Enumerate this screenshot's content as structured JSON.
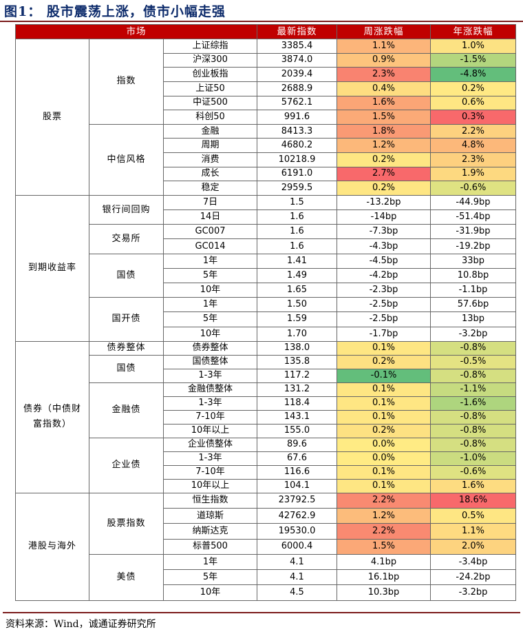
{
  "title": "图1：  股市震荡上涨，债市小幅走强",
  "header": {
    "market": "市场",
    "latest": "最新指数",
    "week": "周涨跌幅",
    "year": "年涨跌幅"
  },
  "groups": [
    {
      "label": "股票",
      "rows": 11,
      "sub": [
        {
          "label": "指数",
          "items": [
            {
              "name": "上证综指",
              "latest": "3385.4",
              "week": "1.1%",
              "year": "1.0%",
              "wc": "#fcb57a",
              "yc": "#fce283"
            },
            {
              "name": "沪深300",
              "latest": "3874.0",
              "week": "0.9%",
              "year": "-1.5%",
              "wc": "#fdc47d",
              "yc": "#b3d67e"
            },
            {
              "name": "创业板指",
              "latest": "2039.4",
              "week": "2.3%",
              "year": "-4.8%",
              "wc": "#f98370",
              "yc": "#63be7b"
            },
            {
              "name": "上证50",
              "latest": "2688.9",
              "week": "0.4%",
              "year": "0.2%",
              "wc": "#fedd81",
              "yc": "#ffe984"
            },
            {
              "name": "中证500",
              "latest": "5762.1",
              "week": "1.6%",
              "year": "0.6%",
              "wc": "#fba576",
              "yc": "#fee683"
            },
            {
              "name": "科创50",
              "latest": "991.6",
              "week": "1.5%",
              "year": "0.3%",
              "wc": "#fbaa77",
              "yc": "#f8696b"
            }
          ]
        },
        {
          "label": "中信风格",
          "items": [
            {
              "name": "金融",
              "latest": "8413.3",
              "week": "1.8%",
              "year": "2.2%",
              "wc": "#fa9a74",
              "yc": "#fdd17f"
            },
            {
              "name": "周期",
              "latest": "4680.2",
              "week": "1.2%",
              "year": "4.8%",
              "wc": "#fcb87a",
              "yc": "#fcb87a"
            },
            {
              "name": "消费",
              "latest": "10218.9",
              "week": "0.2%",
              "year": "2.3%",
              "wc": "#fee683",
              "yc": "#fdd07f"
            },
            {
              "name": "成长",
              "latest": "6191.0",
              "week": "2.7%",
              "year": "1.9%",
              "wc": "#f8696b",
              "yc": "#fdd980"
            },
            {
              "name": "稳定",
              "latest": "2959.5",
              "week": "0.2%",
              "year": "-0.6%",
              "wc": "#fee683",
              "yc": "#dfe282"
            }
          ]
        }
      ]
    },
    {
      "label": "到期收益率",
      "rows": 10,
      "sub": [
        {
          "label": "银行间回购",
          "items": [
            {
              "name": "7日",
              "latest": "1.5",
              "week": "-13.2bp",
              "year": "-44.9bp",
              "wc": "",
              "yc": ""
            },
            {
              "name": "14日",
              "latest": "1.6",
              "week": "-14bp",
              "year": "-51.4bp",
              "wc": "",
              "yc": ""
            }
          ]
        },
        {
          "label": "交易所",
          "items": [
            {
              "name": "GC007",
              "latest": "1.6",
              "week": "-7.3bp",
              "year": "-31.9bp",
              "wc": "",
              "yc": ""
            },
            {
              "name": "GC014",
              "latest": "1.6",
              "week": "-4.3bp",
              "year": "-19.2bp",
              "wc": "",
              "yc": ""
            }
          ]
        },
        {
          "label": "国债",
          "items": [
            {
              "name": "1年",
              "latest": "1.41",
              "week": "-4.5bp",
              "year": "33bp",
              "wc": "",
              "yc": ""
            },
            {
              "name": "5年",
              "latest": "1.49",
              "week": "-4.2bp",
              "year": "10.8bp",
              "wc": "",
              "yc": ""
            },
            {
              "name": "10年",
              "latest": "1.65",
              "week": "-2.3bp",
              "year": "-1.1bp",
              "wc": "",
              "yc": ""
            }
          ]
        },
        {
          "label": "国开债",
          "items": [
            {
              "name": "1年",
              "latest": "1.50",
              "week": "-2.5bp",
              "year": "57.6bp",
              "wc": "",
              "yc": ""
            },
            {
              "name": "5年",
              "latest": "1.59",
              "week": "-2.5bp",
              "year": "13bp",
              "wc": "",
              "yc": ""
            },
            {
              "name": "10年",
              "latest": "1.70",
              "week": "-1.7bp",
              "year": "-3.2bp",
              "wc": "",
              "yc": ""
            }
          ]
        }
      ]
    },
    {
      "label": "债券（中债财富指数）",
      "rows": 11,
      "sub": [
        {
          "label": "债券整体",
          "items": [
            {
              "name": "债券整体",
              "latest": "138.0",
              "week": "0.1%",
              "year": "-0.8%",
              "wc": "#fee683",
              "yc": "#d5df81"
            }
          ]
        },
        {
          "label": "国债",
          "items": [
            {
              "name": "国债整体",
              "latest": "135.8",
              "week": "0.2%",
              "year": "-0.5%",
              "wc": "#fde182",
              "yc": "#e4e383"
            },
            {
              "name": "1-3年",
              "latest": "117.2",
              "week": "-0.1%",
              "year": "-0.8%",
              "wc": "#63be7b",
              "yc": "#d5df81"
            }
          ]
        },
        {
          "label": "金融债",
          "items": [
            {
              "name": "金融债整体",
              "latest": "131.2",
              "week": "0.1%",
              "year": "-1.1%",
              "wc": "#fee683",
              "yc": "#c6db80"
            },
            {
              "name": "1-3年",
              "latest": "118.4",
              "week": "0.1%",
              "year": "-1.6%",
              "wc": "#fee683",
              "yc": "#aed57e"
            },
            {
              "name": "7-10年",
              "latest": "143.1",
              "week": "0.1%",
              "year": "-0.8%",
              "wc": "#fee683",
              "yc": "#d5df81"
            },
            {
              "name": "10年以上",
              "latest": "155.0",
              "week": "0.2%",
              "year": "-0.8%",
              "wc": "#fde182",
              "yc": "#d5df81"
            }
          ]
        },
        {
          "label": "企业债",
          "items": [
            {
              "name": "企业债整体",
              "latest": "89.6",
              "week": "0.0%",
              "year": "-0.8%",
              "wc": "#ffeb84",
              "yc": "#d5df81"
            },
            {
              "name": "1-3年",
              "latest": "67.6",
              "week": "0.0%",
              "year": "-1.0%",
              "wc": "#ffeb84",
              "yc": "#cbdc80"
            },
            {
              "name": "7-10年",
              "latest": "116.6",
              "week": "0.1%",
              "year": "-0.6%",
              "wc": "#fee683",
              "yc": "#dfe282"
            },
            {
              "name": "10年以上",
              "latest": "104.1",
              "week": "0.1%",
              "year": "1.6%",
              "wc": "#fee683",
              "yc": "#fddc81"
            }
          ]
        }
      ]
    },
    {
      "label": "港股与海外",
      "rows": 7,
      "sub": [
        {
          "label": "股票指数",
          "items": [
            {
              "name": "恒生指数",
              "latest": "23792.5",
              "week": "2.2%",
              "year": "18.6%",
              "wc": "#f98a71",
              "yc": "#f8696b"
            },
            {
              "name": "道琼斯",
              "latest": "42762.9",
              "week": "1.2%",
              "year": "0.5%",
              "wc": "#fcbc7b",
              "yc": "#fee683"
            },
            {
              "name": "纳斯达克",
              "latest": "19530.0",
              "week": "2.2%",
              "year": "1.1%",
              "wc": "#f98a71",
              "yc": "#fedb81"
            },
            {
              "name": "标普500",
              "latest": "6000.4",
              "week": "1.5%",
              "year": "2.0%",
              "wc": "#fba877",
              "yc": "#fdd37f"
            }
          ]
        },
        {
          "label": "美债",
          "items": [
            {
              "name": "1年",
              "latest": "4.1",
              "week": "4.1bp",
              "year": "-3.4bp",
              "wc": "",
              "yc": ""
            },
            {
              "name": "5年",
              "latest": "4.1",
              "week": "16.1bp",
              "year": "-24.2bp",
              "wc": "",
              "yc": ""
            },
            {
              "name": "10年",
              "latest": "4.5",
              "week": "10.3bp",
              "year": "-3.2bp",
              "wc": "",
              "yc": ""
            }
          ]
        }
      ]
    }
  ],
  "footer": "资料来源：Wind，诚通证券研究所"
}
